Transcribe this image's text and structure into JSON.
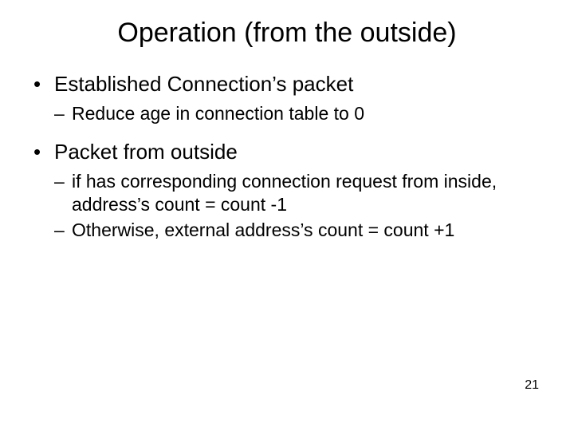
{
  "title": "Operation (from the outside)",
  "bullets": {
    "item1": "Established Connection’s packet",
    "item1_sub1": "Reduce age in connection table to 0",
    "item2": "Packet from outside",
    "item2_sub1": " if has corresponding connection request from inside, address’s count = count -1",
    "item2_sub2": "Otherwise, external address’s count = count +1"
  },
  "page_number": "21",
  "styling": {
    "background_color": "#ffffff",
    "text_color": "#000000",
    "title_fontsize": 34,
    "l1_fontsize": 26,
    "l2_fontsize": 23,
    "page_number_fontsize": 16,
    "font_family": "Arial"
  }
}
